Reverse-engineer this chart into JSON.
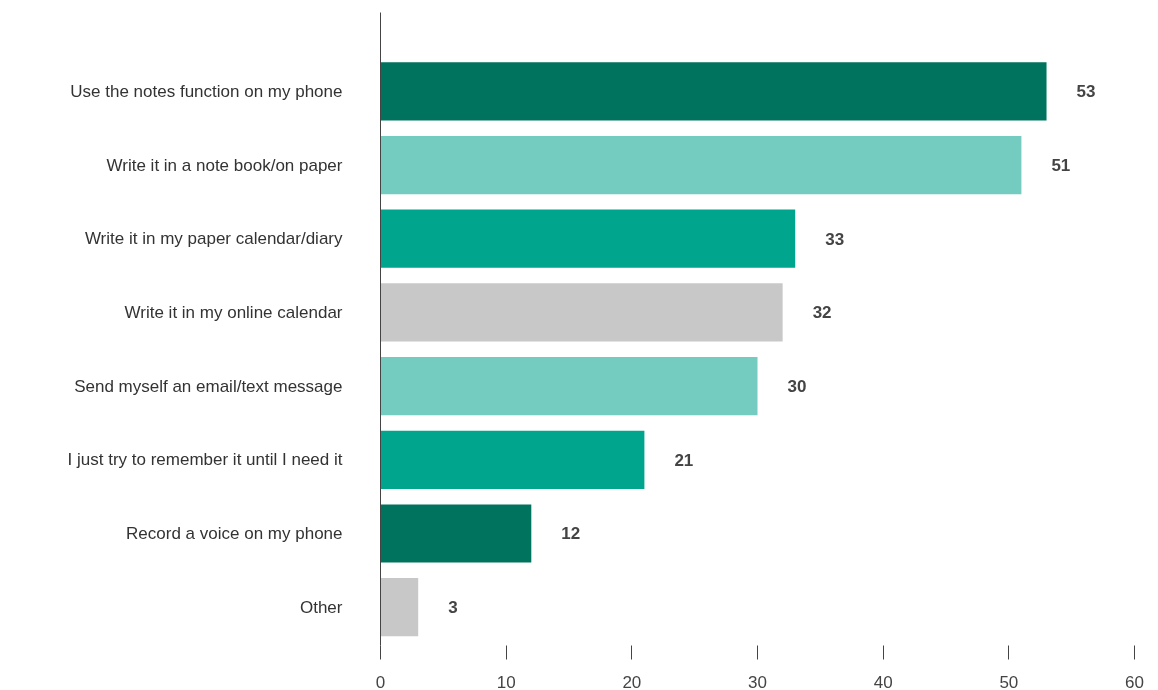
{
  "chart_data": {
    "type": "bar",
    "orientation": "horizontal",
    "categories": [
      "Use the notes function on my phone",
      "Write it in a note book/on paper",
      "Write it in my paper calendar/diary",
      "Write it in my online calendar",
      "Send myself an email/text message",
      "I just try to remember it until I need it",
      "Record a voice on my phone",
      "Other"
    ],
    "values": [
      53,
      51,
      33,
      32,
      30,
      21,
      12,
      3
    ],
    "colors": [
      "#00735e",
      "#74cbbf",
      "#00a58d",
      "#c8c8c8",
      "#74cbbf",
      "#00a58d",
      "#00735e",
      "#c8c8c8"
    ],
    "xlim": [
      0,
      60
    ],
    "xticks": [
      0,
      10,
      20,
      30,
      40,
      50,
      60
    ],
    "data_labels": true,
    "grid": false
  }
}
